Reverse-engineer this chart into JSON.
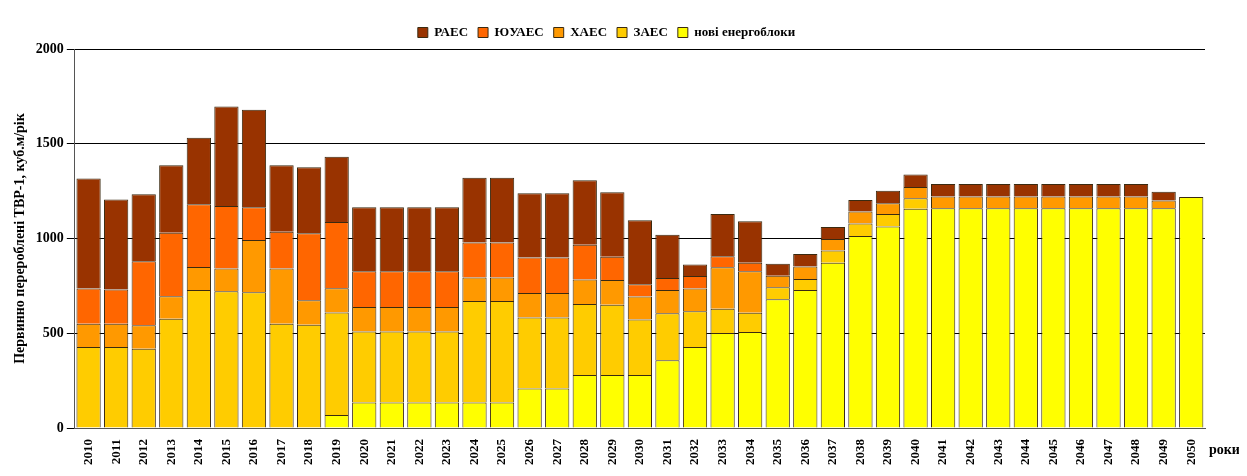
{
  "chart_data": {
    "type": "bar",
    "stacked": true,
    "ylabel": "Первинно перероблені ТВР-1, куб.м/рік",
    "xlabel": "роки",
    "categories": [
      "2010",
      "2011",
      "2012",
      "2013",
      "2014",
      "2015",
      "2016",
      "2017",
      "2018",
      "2019",
      "2020",
      "2021",
      "2022",
      "2023",
      "2024",
      "2025",
      "2026",
      "2027",
      "2028",
      "2029",
      "2030",
      "2031",
      "2032",
      "2033",
      "2034",
      "2035",
      "2036",
      "2037",
      "2038",
      "2039",
      "2040",
      "2041",
      "2042",
      "2043",
      "2044",
      "2045",
      "2046",
      "2047",
      "2048",
      "2049",
      "2050"
    ],
    "series": [
      {
        "name": "нові енергоблоки",
        "color": "#ffff00",
        "values": [
          0,
          0,
          0,
          0,
          0,
          0,
          0,
          0,
          0,
          69,
          135,
          135,
          135,
          135,
          135,
          135,
          209,
          209,
          280,
          280,
          280,
          358,
          427,
          501,
          506,
          679,
          728,
          872,
          1013,
          1063,
          1157,
          1160,
          1160,
          1160,
          1160,
          1160,
          1160,
          1160,
          1160,
          1160,
          1219
        ]
      },
      {
        "name": "ЗАЕС",
        "color": "#ffcc00",
        "values": [
          427,
          427,
          418,
          577,
          728,
          722,
          717,
          550,
          545,
          541,
          374,
          374,
          374,
          374,
          535,
          535,
          374,
          374,
          374,
          371,
          292,
          247,
          189,
          128,
          102,
          64,
          58,
          65,
          66,
          66,
          56,
          0,
          0,
          0,
          0,
          0,
          0,
          0,
          0,
          0,
          0
        ]
      },
      {
        "name": "ХАЕС",
        "color": "#ff9900",
        "values": [
          123,
          123,
          124,
          118,
          122,
          120,
          275,
          292,
          129,
          128,
          129,
          129,
          129,
          129,
          124,
          124,
          129,
          129,
          129,
          130,
          122,
          123,
          120,
          219,
          219,
          61,
          66,
          61,
          63,
          57,
          59,
          62,
          62,
          62,
          62,
          62,
          62,
          62,
          62,
          41,
          0
        ]
      },
      {
        "name": "ЮУАЕС",
        "color": "#ff6600",
        "values": [
          186,
          181,
          338,
          336,
          331,
          329,
          173,
          193,
          354,
          349,
          189,
          189,
          189,
          189,
          185,
          185,
          188,
          188,
          184,
          123,
          64,
          63,
          66,
          58,
          45,
          0,
          0,
          0,
          0,
          0,
          0,
          0,
          0,
          0,
          0,
          0,
          0,
          0,
          0,
          0,
          0
        ]
      },
      {
        "name": "РАЕС",
        "color": "#993300",
        "values": [
          580,
          475,
          354,
          355,
          351,
          526,
          514,
          351,
          348,
          345,
          338,
          338,
          338,
          338,
          342,
          342,
          339,
          339,
          341,
          340,
          338,
          229,
          61,
          223,
          219,
          63,
          66,
          63,
          61,
          66,
          66,
          66,
          66,
          66,
          66,
          66,
          66,
          66,
          66,
          46,
          0
        ]
      }
    ],
    "ylim": [
      0,
      2000
    ],
    "yticks": [
      0,
      500,
      1000,
      1500,
      2000
    ],
    "grid": "y",
    "legend": "top"
  }
}
